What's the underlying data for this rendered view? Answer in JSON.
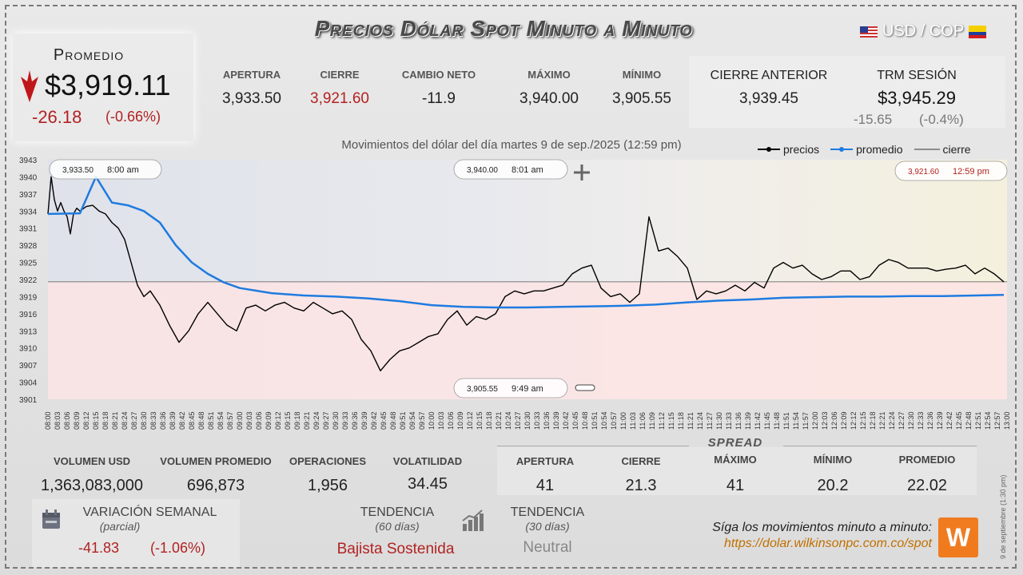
{
  "header": {
    "title": "Precios Dólar Spot Minuto a Minuto",
    "pair": "USD / COP"
  },
  "average": {
    "label": "Promedio",
    "price": "$3,919.11",
    "change": "-26.18",
    "change_pct": "(-0.66%)"
  },
  "top_stats": [
    {
      "label": "APERTURA",
      "value": "3,933.50",
      "color": "#222"
    },
    {
      "label": "CIERRE",
      "value": "3,921.60",
      "color": "#b22222"
    },
    {
      "label": "CAMBIO NETO",
      "value": "-11.9",
      "color": "#222"
    },
    {
      "label": "MÁXIMO",
      "value": "3,940.00",
      "color": "#222"
    },
    {
      "label": "MÍNIMO",
      "value": "3,905.55",
      "color": "#222"
    }
  ],
  "prev_close": {
    "label": "CIERRE ANTERIOR",
    "value": "3,939.45"
  },
  "trm": {
    "label": "TRM SESIÓN",
    "value": "$3,945.29",
    "change": "-15.65",
    "change_pct": "(-0.4%)"
  },
  "chart_caption": "Movimientos del dólar del día martes 9 de sep./2025 (12:59 pm)",
  "legend": {
    "precios": "precios",
    "promedio": "promedio",
    "cierre": "cierre"
  },
  "callouts": {
    "open": {
      "value": "3,933.50",
      "time": "8:00 am"
    },
    "max": {
      "value": "3,940.00",
      "time": "8:01 am"
    },
    "close": {
      "value": "3,921.60",
      "time": "12:59 pm"
    },
    "min": {
      "value": "3,905.55",
      "time": "9:49 am"
    }
  },
  "bottom": {
    "volumen_usd": {
      "label": "VOLUMEN USD",
      "value": "1,363,083,000"
    },
    "volumen_promedio": {
      "label": "VOLUMEN PROMEDIO",
      "value": "696,873"
    },
    "operaciones": {
      "label": "OPERACIONES",
      "value": "1,956"
    },
    "volatilidad": {
      "label": "VOLATILIDAD",
      "value": "34.45"
    }
  },
  "spread": {
    "title": "SPREAD",
    "items": [
      {
        "label": "APERTURA",
        "value": "41"
      },
      {
        "label": "CIERRE",
        "value": "21.3"
      },
      {
        "label": "MÁXIMO",
        "value": "41"
      },
      {
        "label": "MÍNIMO",
        "value": "20.2"
      },
      {
        "label": "PROMEDIO",
        "value": "22.02"
      }
    ]
  },
  "weekly": {
    "label": "VARIACIÓN SEMANAL",
    "sub": "(parcial)",
    "value": "-41.83",
    "pct": "(-1.06%)"
  },
  "trend60": {
    "label": "TENDENCIA",
    "sub": "(60 días)",
    "value": "Bajista Sostenida"
  },
  "trend30": {
    "label": "TENDENCIA",
    "sub": "(30 días)",
    "value": "Neutral"
  },
  "follow": {
    "text": "Síga los movimientos minuto a minuto:",
    "url": "https://dolar.wilkinsonpc.com.co/spot"
  },
  "side_note": "9 de septiembre (1:30 pm)",
  "colors": {
    "accent_red": "#b22222",
    "price_line": "#000000",
    "avg_line": "#1e7be0",
    "below_fill": "#fde4e4"
  },
  "chart_data": {
    "type": "line",
    "title": "Movimientos del dólar del día martes 9 de sep./2025 (12:59 pm)",
    "ylim": [
      3901,
      3943
    ],
    "yticks": [
      3901,
      3904,
      3907,
      3910,
      3913,
      3916,
      3919,
      3922,
      3925,
      3928,
      3931,
      3934,
      3937,
      3940,
      3943
    ],
    "xticks": [
      "08:00",
      "08:03",
      "08:06",
      "08:09",
      "08:12",
      "08:15",
      "08:18",
      "08:21",
      "08:24",
      "08:27",
      "08:30",
      "08:33",
      "08:36",
      "08:39",
      "08:42",
      "08:45",
      "08:48",
      "08:51",
      "08:54",
      "08:57",
      "09:00",
      "09:03",
      "09:06",
      "09:09",
      "09:12",
      "09:15",
      "09:18",
      "09:21",
      "09:24",
      "09:27",
      "09:30",
      "09:33",
      "09:36",
      "09:39",
      "09:42",
      "09:45",
      "09:48",
      "09:51",
      "09:54",
      "09:57",
      "10:00",
      "10:03",
      "10:06",
      "10:09",
      "10:12",
      "10:15",
      "10:18",
      "10:21",
      "10:24",
      "10:27",
      "10:30",
      "10:33",
      "10:36",
      "10:39",
      "10:42",
      "10:45",
      "10:48",
      "10:51",
      "10:54",
      "10:57",
      "11:00",
      "11:03",
      "11:06",
      "11:09",
      "11:12",
      "11:15",
      "11:18",
      "11:21",
      "11:24",
      "11:27",
      "11:30",
      "11:33",
      "11:36",
      "11:39",
      "11:42",
      "11:45",
      "11:48",
      "11:51",
      "11:54",
      "11:57",
      "12:00",
      "12:03",
      "12:06",
      "12:09",
      "12:12",
      "12:15",
      "12:18",
      "12:21",
      "12:24",
      "12:27",
      "12:30",
      "12:33",
      "12:36",
      "12:39",
      "12:42",
      "12:45",
      "12:48",
      "12:51",
      "12:54",
      "12:57",
      "13:00"
    ],
    "close_line": 3921.6,
    "series": [
      {
        "name": "precios",
        "x_min": [
          0,
          1,
          2,
          3,
          4,
          5,
          6,
          7,
          8,
          9,
          10,
          12,
          14,
          16,
          18,
          20,
          22,
          24,
          26,
          28,
          30,
          32,
          35,
          38,
          41,
          44,
          47,
          50,
          53,
          56,
          59,
          62,
          65,
          68,
          71,
          74,
          77,
          80,
          83,
          86,
          89,
          92,
          95,
          98,
          101,
          104,
          107,
          110,
          113,
          116,
          119,
          122,
          125,
          128,
          131,
          134,
          137,
          140,
          143,
          146,
          149,
          152,
          155,
          158,
          161,
          164,
          167,
          170,
          173,
          176,
          179,
          182,
          185,
          188,
          191,
          194,
          197,
          200,
          203,
          206,
          209,
          212,
          215,
          218,
          221,
          224,
          227,
          230,
          233,
          236,
          239,
          242,
          245,
          248,
          251,
          254,
          257,
          260,
          263,
          266,
          269,
          272,
          275,
          278,
          281,
          284,
          287,
          290,
          293,
          296,
          299
        ],
        "values": [
          3933.5,
          3940.0,
          3936.0,
          3934.0,
          3935.5,
          3934.0,
          3933.0,
          3930.0,
          3933.5,
          3934.5,
          3934.0,
          3934.8,
          3935.0,
          3934.0,
          3933.5,
          3932.0,
          3931.0,
          3929.0,
          3925.0,
          3921.0,
          3919.0,
          3920.0,
          3917.5,
          3914.0,
          3911.0,
          3913.0,
          3916.0,
          3918.0,
          3916.0,
          3914.0,
          3913.0,
          3917.0,
          3917.5,
          3916.5,
          3917.5,
          3918.0,
          3917.0,
          3916.5,
          3918.0,
          3917.0,
          3916.0,
          3916.5,
          3915.0,
          3911.5,
          3909.5,
          3906.0,
          3908.0,
          3909.5,
          3910.0,
          3911.0,
          3912.0,
          3912.5,
          3915.0,
          3916.5,
          3914.0,
          3915.5,
          3915.0,
          3916.0,
          3919.0,
          3920.0,
          3919.5,
          3920.0,
          3920.0,
          3920.5,
          3921.0,
          3923.0,
          3924.0,
          3924.5,
          3920.5,
          3919.0,
          3919.5,
          3918.0,
          3919.5,
          3933.0,
          3927.0,
          3927.5,
          3926.0,
          3924.0,
          3918.5,
          3920.0,
          3919.5,
          3920.0,
          3921.0,
          3920.0,
          3921.5,
          3920.5,
          3924.0,
          3925.0,
          3924.0,
          3924.5,
          3923.0,
          3922.0,
          3922.5,
          3923.5,
          3923.5,
          3922.0,
          3922.5,
          3924.5,
          3925.5,
          3925.0,
          3924.0,
          3924.0,
          3924.0,
          3923.5,
          3923.8,
          3924.0,
          3924.5,
          3923.0,
          3924.0,
          3923.0,
          3921.6
        ]
      },
      {
        "name": "promedio",
        "x_min": [
          0,
          10,
          15,
          20,
          25,
          30,
          35,
          40,
          45,
          50,
          55,
          60,
          70,
          80,
          90,
          100,
          110,
          120,
          130,
          140,
          150,
          160,
          170,
          180,
          190,
          200,
          210,
          220,
          230,
          240,
          250,
          260,
          270,
          280,
          290,
          299
        ],
        "values": [
          3933.5,
          3933.6,
          3940.0,
          3935.5,
          3935.0,
          3934.0,
          3932.0,
          3928.0,
          3925.0,
          3923.0,
          3921.5,
          3920.5,
          3919.6,
          3919.2,
          3919.0,
          3918.7,
          3918.2,
          3917.5,
          3917.2,
          3917.1,
          3917.1,
          3917.2,
          3917.3,
          3917.4,
          3917.6,
          3918.0,
          3918.3,
          3918.5,
          3918.8,
          3918.9,
          3919.0,
          3919.0,
          3919.1,
          3919.1,
          3919.2,
          3919.3
        ]
      }
    ]
  }
}
